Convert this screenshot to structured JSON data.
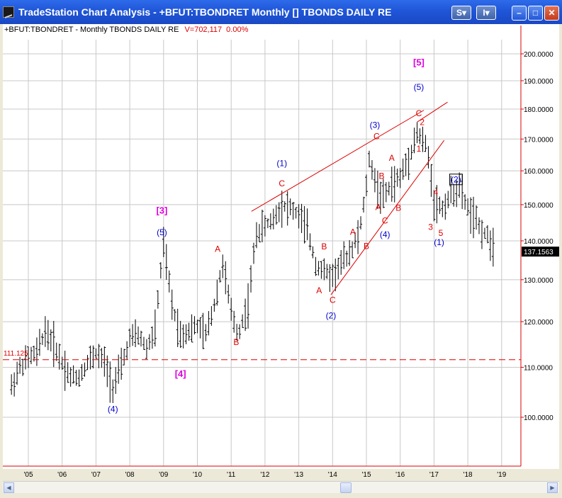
{
  "window": {
    "title": "TradeStation Chart Analysis - +BFUT:TBONDRET Monthly [] TBONDS DAILY RE",
    "buttons": {
      "s_label": "S",
      "i_label": "I"
    }
  },
  "legend": {
    "symbol": "+BFUT:TBONDRET - Monthly  TBONDS DAILY RE",
    "volume": "V=702,117",
    "change": "0.00%"
  },
  "colors": {
    "wave_blue": "#0000cc",
    "wave_red": "#dd0000",
    "wave_magenta": "#dd00dd",
    "trendline": "#dd0000"
  },
  "chart_data": {
    "type": "bar",
    "title": "",
    "period": "Monthly",
    "x_tick_labels": [
      "'05",
      "'06",
      "'07",
      "'08",
      "'09",
      "'10",
      "'11",
      "'12",
      "'13",
      "'14",
      "'15",
      "'16",
      "'17",
      "'18",
      "'19"
    ],
    "y_tick_labels": [
      "100.0000",
      "110.0000",
      "120.0000",
      "130.0000",
      "140.0000",
      "150.0000",
      "160.0000",
      "170.0000",
      "180.0000",
      "190.0000",
      "200.0000"
    ],
    "ylim": [
      96,
      206
    ],
    "y_scale": "log",
    "last_price": "137.1563",
    "support_line_label": "111.125",
    "support_line_value": 111.6,
    "grid": "on",
    "series": [
      {
        "x": 2004.5,
        "v": 106
      },
      {
        "x": 2004.75,
        "v": 110
      },
      {
        "x": 2005.0,
        "v": 112
      },
      {
        "x": 2005.25,
        "v": 113
      },
      {
        "x": 2005.5,
        "v": 118
      },
      {
        "x": 2005.75,
        "v": 115
      },
      {
        "x": 2006.0,
        "v": 111
      },
      {
        "x": 2006.25,
        "v": 108
      },
      {
        "x": 2006.5,
        "v": 108
      },
      {
        "x": 2006.75,
        "v": 111
      },
      {
        "x": 2007.0,
        "v": 113
      },
      {
        "x": 2007.25,
        "v": 111
      },
      {
        "x": 2007.5,
        "v": 106
      },
      {
        "x": 2007.75,
        "v": 110
      },
      {
        "x": 2008.0,
        "v": 116
      },
      {
        "x": 2008.25,
        "v": 117
      },
      {
        "x": 2008.5,
        "v": 114
      },
      {
        "x": 2008.75,
        "v": 118
      },
      {
        "x": 2008.95,
        "v": 135
      },
      {
        "x": 2009.0,
        "v": 139
      },
      {
        "x": 2009.25,
        "v": 124
      },
      {
        "x": 2009.5,
        "v": 117
      },
      {
        "x": 2009.75,
        "v": 118
      },
      {
        "x": 2010.0,
        "v": 119
      },
      {
        "x": 2010.25,
        "v": 117
      },
      {
        "x": 2010.5,
        "v": 124
      },
      {
        "x": 2010.75,
        "v": 134
      },
      {
        "x": 2011.0,
        "v": 122
      },
      {
        "x": 2011.2,
        "v": 117
      },
      {
        "x": 2011.5,
        "v": 124
      },
      {
        "x": 2011.75,
        "v": 142
      },
      {
        "x": 2012.0,
        "v": 144
      },
      {
        "x": 2012.25,
        "v": 146
      },
      {
        "x": 2012.5,
        "v": 150
      },
      {
        "x": 2012.75,
        "v": 149
      },
      {
        "x": 2013.0,
        "v": 147
      },
      {
        "x": 2013.25,
        "v": 143
      },
      {
        "x": 2013.5,
        "v": 134
      },
      {
        "x": 2013.75,
        "v": 132
      },
      {
        "x": 2014.0,
        "v": 131
      },
      {
        "x": 2014.25,
        "v": 134
      },
      {
        "x": 2014.5,
        "v": 137
      },
      {
        "x": 2014.75,
        "v": 141
      },
      {
        "x": 2014.9,
        "v": 148
      },
      {
        "x": 2015.1,
        "v": 164
      },
      {
        "x": 2015.3,
        "v": 155
      },
      {
        "x": 2015.5,
        "v": 152
      },
      {
        "x": 2015.75,
        "v": 156
      },
      {
        "x": 2016.0,
        "v": 158
      },
      {
        "x": 2016.25,
        "v": 164
      },
      {
        "x": 2016.5,
        "v": 172
      },
      {
        "x": 2016.75,
        "v": 168
      },
      {
        "x": 2016.9,
        "v": 160
      },
      {
        "x": 2017.0,
        "v": 151
      },
      {
        "x": 2017.25,
        "v": 149
      },
      {
        "x": 2017.5,
        "v": 153
      },
      {
        "x": 2017.75,
        "v": 155
      },
      {
        "x": 2018.0,
        "v": 149
      },
      {
        "x": 2018.25,
        "v": 145
      },
      {
        "x": 2018.5,
        "v": 142
      },
      {
        "x": 2018.75,
        "v": 139
      }
    ],
    "annotations": [
      {
        "text": "[3]",
        "x": 2008.95,
        "y": 148.3,
        "color": "magenta",
        "boxed": false
      },
      {
        "text": "(5)",
        "x": 2008.95,
        "y": 142.3,
        "color": "blue",
        "boxed": false
      },
      {
        "text": "[4]",
        "x": 2009.5,
        "y": 108.6,
        "color": "magenta",
        "boxed": false
      },
      {
        "text": "(4)",
        "x": 2007.5,
        "y": 101.6,
        "color": "blue",
        "boxed": false
      },
      {
        "text": "A",
        "x": 2010.6,
        "y": 137.8,
        "color": "red",
        "boxed": false
      },
      {
        "text": "B",
        "x": 2011.15,
        "y": 115.4,
        "color": "red",
        "boxed": false
      },
      {
        "text": "(1)",
        "x": 2012.5,
        "y": 162.3,
        "color": "blue",
        "boxed": false
      },
      {
        "text": "C",
        "x": 2012.5,
        "y": 156.2,
        "color": "red",
        "boxed": false
      },
      {
        "text": "B",
        "x": 2013.75,
        "y": 138.5,
        "color": "red",
        "boxed": false
      },
      {
        "text": "A",
        "x": 2013.6,
        "y": 127.4,
        "color": "red",
        "boxed": false
      },
      {
        "text": "C",
        "x": 2014.0,
        "y": 125.1,
        "color": "red",
        "boxed": false
      },
      {
        "text": "(2)",
        "x": 2013.95,
        "y": 121.4,
        "color": "blue",
        "boxed": false
      },
      {
        "text": "A",
        "x": 2014.6,
        "y": 142.4,
        "color": "red",
        "boxed": false
      },
      {
        "text": "B",
        "x": 2015.0,
        "y": 138.6,
        "color": "red",
        "boxed": false
      },
      {
        "text": "(3)",
        "x": 2015.25,
        "y": 174.6,
        "color": "blue",
        "boxed": false
      },
      {
        "text": "C",
        "x": 2015.3,
        "y": 170.9,
        "color": "red",
        "boxed": false
      },
      {
        "text": "B",
        "x": 2015.45,
        "y": 158.4,
        "color": "red",
        "boxed": false
      },
      {
        "text": "A",
        "x": 2015.75,
        "y": 164.0,
        "color": "red",
        "boxed": false
      },
      {
        "text": "A",
        "x": 2015.35,
        "y": 149.3,
        "color": "red",
        "boxed": false
      },
      {
        "text": "C",
        "x": 2015.55,
        "y": 145.5,
        "color": "red",
        "boxed": false
      },
      {
        "text": "(4)",
        "x": 2015.55,
        "y": 141.7,
        "color": "blue",
        "boxed": false
      },
      {
        "text": "B",
        "x": 2015.95,
        "y": 149.1,
        "color": "red",
        "boxed": false
      },
      {
        "text": "[5]",
        "x": 2016.55,
        "y": 196.7,
        "color": "magenta",
        "boxed": false
      },
      {
        "text": "(5)",
        "x": 2016.55,
        "y": 187.7,
        "color": "blue",
        "boxed": false
      },
      {
        "text": "C",
        "x": 2016.55,
        "y": 178.5,
        "color": "red",
        "boxed": false
      },
      {
        "text": "2",
        "x": 2016.65,
        "y": 175.6,
        "color": "red",
        "boxed": false
      },
      {
        "text": "1",
        "x": 2016.55,
        "y": 166.9,
        "color": "red",
        "boxed": false
      },
      {
        "text": "4",
        "x": 2017.05,
        "y": 153.6,
        "color": "red",
        "boxed": false
      },
      {
        "text": "3",
        "x": 2016.9,
        "y": 143.7,
        "color": "red",
        "boxed": false
      },
      {
        "text": "5",
        "x": 2017.2,
        "y": 142.1,
        "color": "red",
        "boxed": false
      },
      {
        "text": "(1)",
        "x": 2017.15,
        "y": 139.6,
        "color": "blue",
        "boxed": false
      },
      {
        "text": "(2)",
        "x": 2017.65,
        "y": 157.3,
        "color": "blue",
        "boxed": true
      }
    ],
    "trendlines": [
      {
        "x1": 2011.6,
        "y1": 148.1,
        "x2": 2016.7,
        "y2": 179.6
      },
      {
        "x1": 2013.95,
        "y1": 126.3,
        "x2": 2017.3,
        "y2": 169.6
      },
      {
        "x1": 2016.5,
        "y1": 175.6,
        "x2": 2017.4,
        "y2": 182.4
      }
    ]
  }
}
